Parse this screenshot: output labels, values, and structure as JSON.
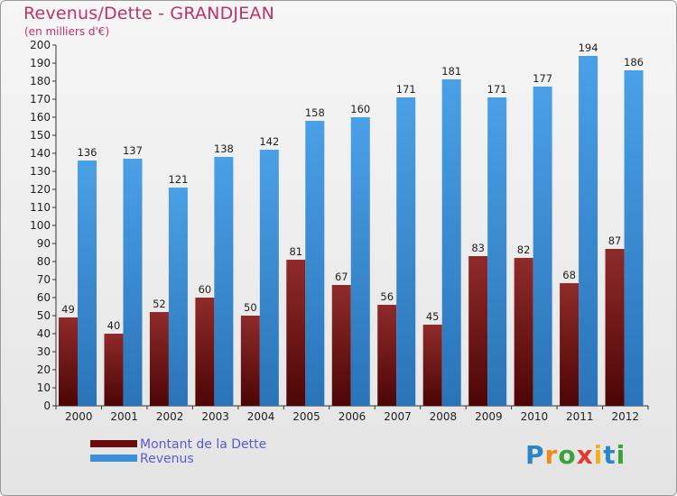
{
  "header": {
    "title": "Revenus/Dette - GRANDJEAN",
    "subtitle": "(en milliers d'€)"
  },
  "chart_data": {
    "type": "bar",
    "title": "Revenus/Dette - GRANDJEAN",
    "subtitle": "(en milliers d'€)",
    "categories": [
      "2000",
      "2001",
      "2002",
      "2003",
      "2004",
      "2005",
      "2006",
      "2007",
      "2008",
      "2009",
      "2010",
      "2011",
      "2012"
    ],
    "series": [
      {
        "name": "Montant de la Dette",
        "color": "#7a1c1c",
        "values": [
          49,
          40,
          52,
          60,
          50,
          81,
          67,
          56,
          45,
          83,
          82,
          68,
          87
        ]
      },
      {
        "name": "Revenus",
        "color": "#3d8fd8",
        "values": [
          136,
          137,
          121,
          138,
          142,
          158,
          160,
          171,
          181,
          171,
          177,
          194,
          186
        ]
      }
    ],
    "ylim": [
      0,
      200
    ],
    "yticks": [
      0,
      10,
      20,
      30,
      40,
      50,
      60,
      70,
      80,
      90,
      100,
      110,
      120,
      130,
      140,
      150,
      160,
      170,
      180,
      190,
      200
    ],
    "grid": false,
    "legend_position": "bottom-left"
  },
  "legend": {
    "items": [
      {
        "label": "Montant de la Dette",
        "color": "#6b0d0d"
      },
      {
        "label": "Revenus",
        "color": "#3d8fd8"
      }
    ]
  },
  "logo": {
    "text": "Proxiti",
    "letters": [
      {
        "char": "P",
        "color": "#2b86c8"
      },
      {
        "char": "r",
        "color": "#ef8a1a"
      },
      {
        "char": "o",
        "color": "#3aa33a"
      },
      {
        "char": "x",
        "color": "#e23a2f"
      },
      {
        "char": "i",
        "color": "#f0b21a"
      },
      {
        "char": "t",
        "color": "#2b86c8"
      },
      {
        "char": "i",
        "color": "#3aa33a"
      }
    ]
  }
}
